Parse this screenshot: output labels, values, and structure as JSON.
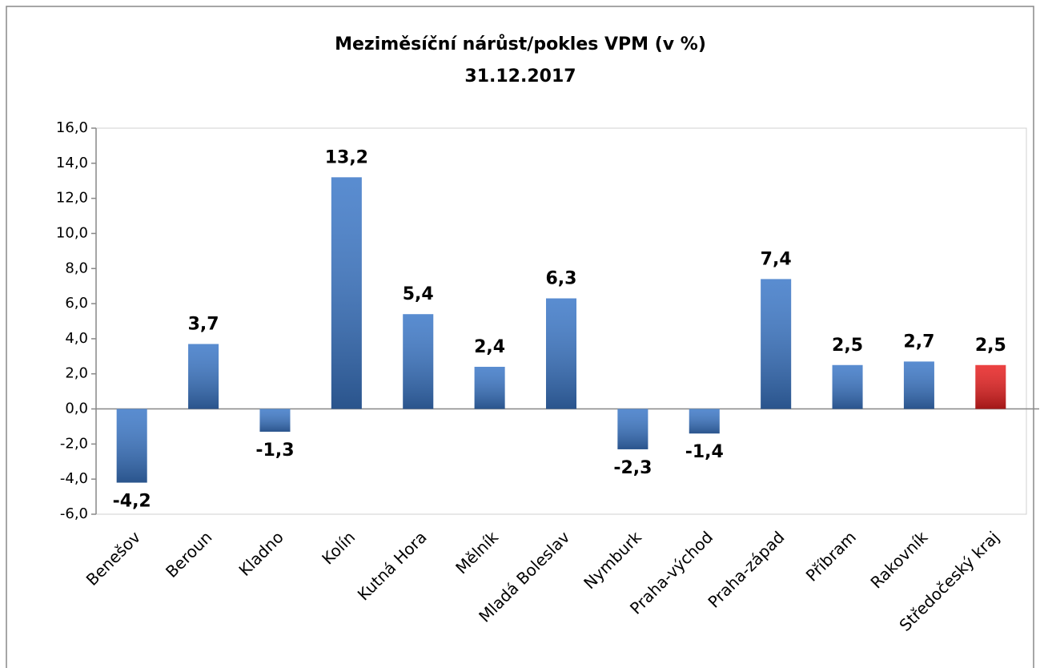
{
  "chart_data": {
    "type": "bar",
    "title": "Meziměsíční nárůst/pokles VPM (v %)",
    "subtitle": "31.12.2017",
    "categories": [
      "Benešov",
      "Beroun",
      "Kladno",
      "Kolín",
      "Kutná Hora",
      "Mělník",
      "Mladá Boleslav",
      "Nymburk",
      "Praha-východ",
      "Praha-západ",
      "Příbram",
      "Rakovník",
      "Středočeský kraj"
    ],
    "values": [
      -4.2,
      3.7,
      -1.3,
      13.2,
      5.4,
      2.4,
      6.3,
      -2.3,
      -1.4,
      7.4,
      2.5,
      2.7,
      2.5
    ],
    "value_labels": [
      "-4,2",
      "3,7",
      "-1,3",
      "13,2",
      "5,4",
      "2,4",
      "6,3",
      "-2,3",
      "-1,4",
      "7,4",
      "2,5",
      "2,7",
      "2,5"
    ],
    "colors": [
      "#3c78c8",
      "#3c78c8",
      "#3c78c8",
      "#3c78c8",
      "#3c78c8",
      "#3c78c8",
      "#3c78c8",
      "#3c78c8",
      "#3c78c8",
      "#3c78c8",
      "#3c78c8",
      "#3c78c8",
      "#e82020"
    ],
    "ylim": [
      -6,
      16
    ],
    "yticks": [
      {
        "value": -6,
        "label": "-6,0"
      },
      {
        "value": -4,
        "label": "-4,0"
      },
      {
        "value": -2,
        "label": "-2,0"
      },
      {
        "value": 0,
        "label": "0,0"
      },
      {
        "value": 2,
        "label": "2,0"
      },
      {
        "value": 4,
        "label": "4,0"
      },
      {
        "value": 6,
        "label": "6,0"
      },
      {
        "value": 8,
        "label": "8,0"
      },
      {
        "value": 10,
        "label": "10,0"
      },
      {
        "value": 12,
        "label": "12,0"
      },
      {
        "value": 14,
        "label": "14,0"
      },
      {
        "value": 16,
        "label": "16,0"
      }
    ],
    "grid": false
  }
}
